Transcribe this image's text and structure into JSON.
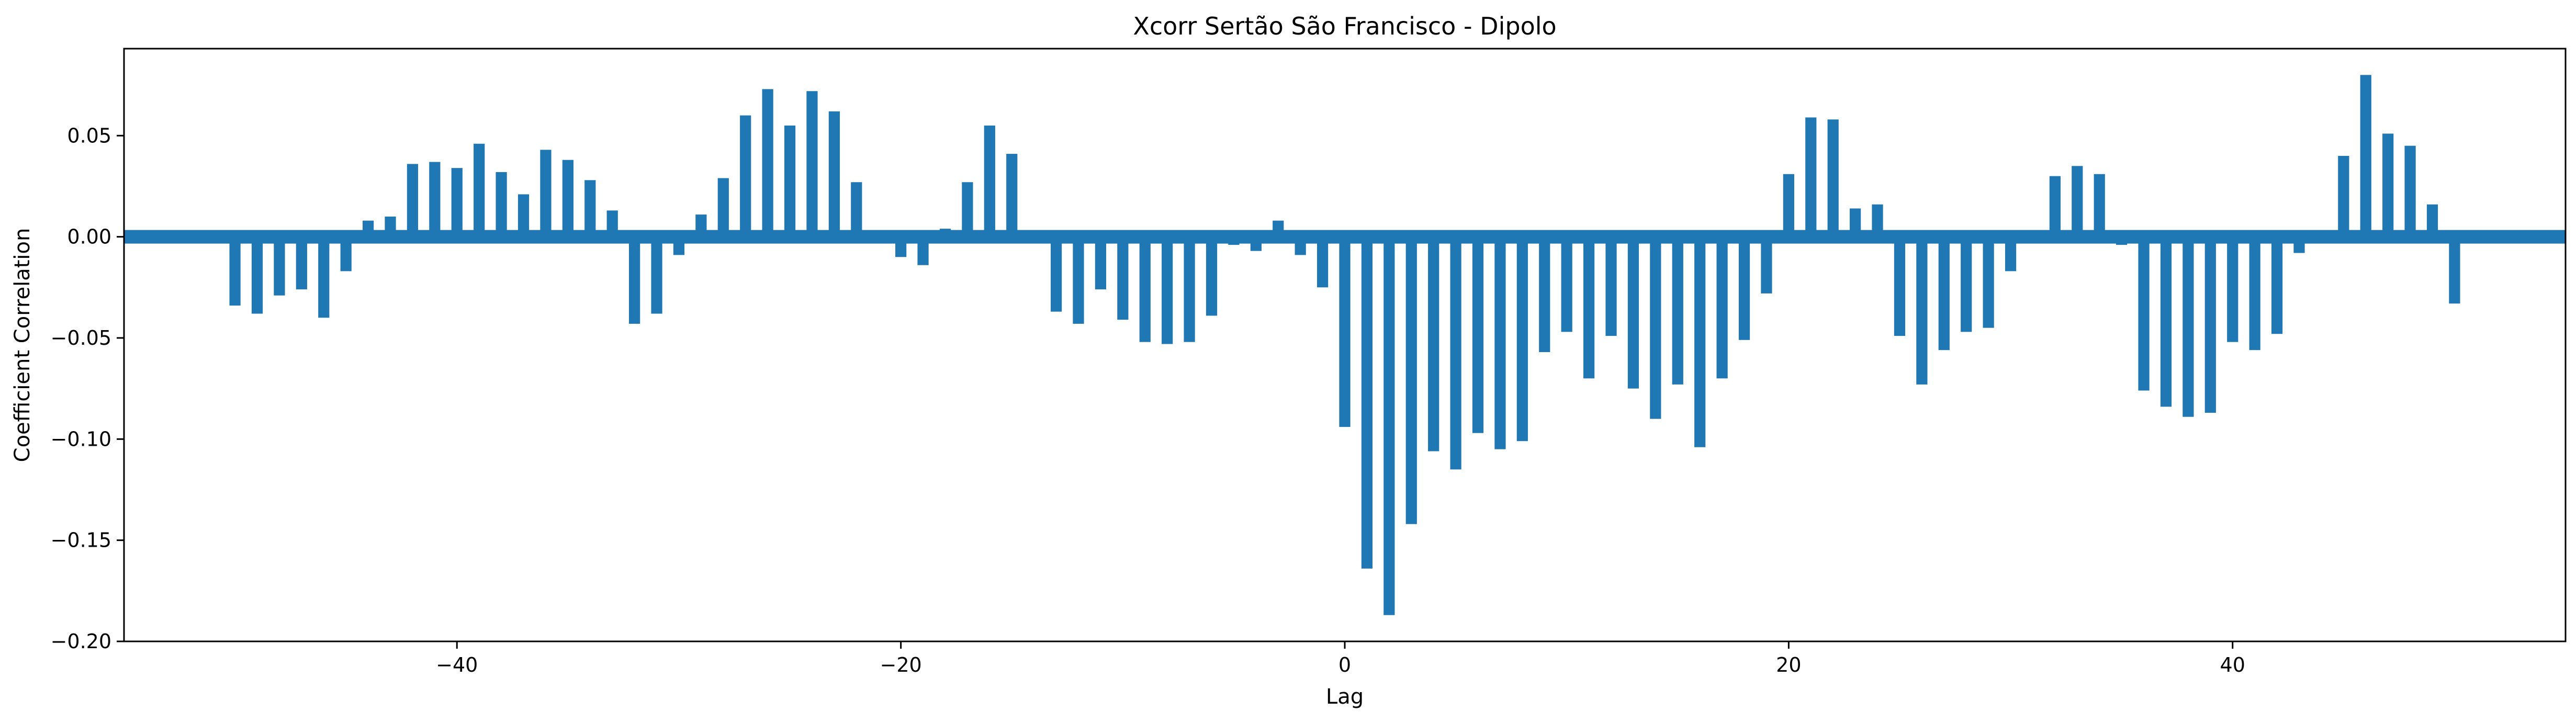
{
  "chart_data": {
    "type": "bar",
    "title": "Xcorr Sertão São Francisco - Dipolo",
    "xlabel": "Lag",
    "ylabel": "Coefficient Correlation",
    "xlim": [
      -55,
      55
    ],
    "ylim": [
      -0.2,
      0.093
    ],
    "xticks": [
      -40,
      -20,
      0,
      20,
      40
    ],
    "xtick_labels": [
      "−40",
      "−20",
      "0",
      "20",
      "40"
    ],
    "yticks": [
      -0.2,
      -0.15,
      -0.1,
      -0.05,
      0.0,
      0.05
    ],
    "ytick_labels": [
      "−0.20",
      "−0.15",
      "−0.10",
      "−0.05",
      "0.00",
      "0.05"
    ],
    "bar_color": "#1f77b4",
    "zero_line": true,
    "grid": false,
    "legend": "none",
    "series": [
      {
        "x": [
          -50,
          -49,
          -48,
          -47,
          -46,
          -45,
          -44,
          -43,
          -42,
          -41,
          -40,
          -39,
          -38,
          -37,
          -36,
          -35,
          -34,
          -33,
          -32,
          -31,
          -30,
          -29,
          -28,
          -27,
          -26,
          -25,
          -24,
          -23,
          -22,
          -21,
          -20,
          -19,
          -18,
          -17,
          -16,
          -15,
          -14,
          -13,
          -12,
          -11,
          -10,
          -9,
          -8,
          -7,
          -6,
          -5,
          -4,
          -3,
          -2,
          -1,
          0,
          1,
          2,
          3,
          4,
          5,
          6,
          7,
          8,
          9,
          10,
          11,
          12,
          13,
          14,
          15,
          16,
          17,
          18,
          19,
          20,
          21,
          22,
          23,
          24,
          25,
          26,
          27,
          28,
          29,
          30,
          31,
          32,
          33,
          34,
          35,
          36,
          37,
          38,
          39,
          40,
          41,
          42,
          43,
          44,
          45,
          46,
          47,
          48,
          49,
          50
        ],
        "values": [
          -0.034,
          -0.038,
          -0.029,
          -0.026,
          -0.04,
          -0.017,
          0.008,
          0.01,
          0.036,
          0.037,
          0.034,
          0.046,
          0.032,
          0.021,
          0.043,
          0.038,
          0.028,
          0.013,
          -0.043,
          -0.038,
          -0.009,
          0.011,
          0.029,
          0.06,
          0.073,
          0.055,
          0.072,
          0.062,
          0.027,
          0.0,
          -0.01,
          -0.014,
          0.004,
          0.027,
          0.055,
          0.041,
          0.0,
          -0.037,
          -0.043,
          -0.026,
          -0.041,
          -0.052,
          -0.053,
          -0.052,
          -0.039,
          -0.004,
          -0.007,
          0.008,
          -0.009,
          -0.025,
          -0.094,
          -0.164,
          -0.187,
          -0.142,
          -0.106,
          -0.115,
          -0.097,
          -0.105,
          -0.101,
          -0.057,
          -0.047,
          -0.07,
          -0.049,
          -0.075,
          -0.09,
          -0.073,
          -0.104,
          -0.07,
          -0.051,
          -0.028,
          0.031,
          0.059,
          0.058,
          0.014,
          0.016,
          -0.049,
          -0.073,
          -0.056,
          -0.047,
          -0.045,
          -0.017,
          0.002,
          0.03,
          0.035,
          0.031,
          -0.004,
          -0.076,
          -0.084,
          -0.089,
          -0.087,
          -0.052,
          -0.056,
          -0.048,
          -0.008,
          -0.002,
          0.04,
          0.08,
          0.051,
          0.045,
          0.016,
          -0.033
        ]
      }
    ]
  }
}
